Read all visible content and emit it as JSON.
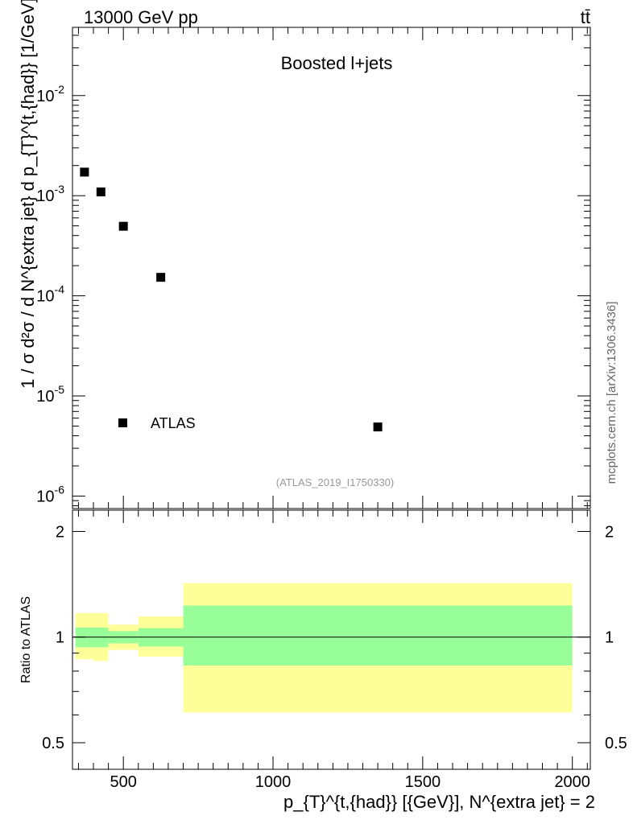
{
  "header": {
    "energy_label": "13000 GeV pp",
    "process_label": "tt̄"
  },
  "chart_data": [
    {
      "type": "scatter",
      "title": "Boosted l+jets",
      "ylabel": "1 / σ d²σ / d N^{extra jet} d p_{T}^{t,{had}} [1/GeV]",
      "xlabel": "p_{T}^{t,{had}} [{GeV}], N^{extra jet} = 2",
      "xlim": [
        330,
        2060
      ],
      "ylim": [
        7.5e-07,
        0.048
      ],
      "yscale": "log",
      "ytick_labels": [
        "10^-2",
        "10^-3",
        "10^-4",
        "10^-5",
        "10^-6"
      ],
      "series": [
        {
          "name": "ATLAS",
          "points": [
            {
              "x": 370,
              "y": 0.00172
            },
            {
              "x": 425,
              "y": 0.00109
            },
            {
              "x": 500,
              "y": 0.000495
            },
            {
              "x": 625,
              "y": 0.000153
            },
            {
              "x": 1350,
              "y": 4.9e-06
            }
          ]
        }
      ],
      "legend_position": "bottom-left",
      "analysis_label": "(ATLAS_2019_I1750330)",
      "side_label": "mcplots.cern.ch [arXiv:1306.3436]"
    },
    {
      "type": "bar",
      "ylabel": "Ratio to ATLAS",
      "ylim": [
        0.42,
        2.3
      ],
      "ytick_labels": [
        "0.5",
        "1",
        "2"
      ],
      "xtick_labels": [
        "500",
        "1000",
        "1500",
        "2000"
      ],
      "reference_line": 1,
      "bins": [
        {
          "xlow": 340,
          "xhigh": 400,
          "green": [
            0.935,
            1.065
          ],
          "yellow": [
            0.865,
            1.17
          ]
        },
        {
          "xlow": 400,
          "xhigh": 450,
          "green": [
            0.935,
            1.065
          ],
          "yellow": [
            0.855,
            1.17
          ]
        },
        {
          "xlow": 450,
          "xhigh": 550,
          "green": [
            0.96,
            1.04
          ],
          "yellow": [
            0.92,
            1.085
          ]
        },
        {
          "xlow": 550,
          "xhigh": 700,
          "green": [
            0.94,
            1.06
          ],
          "yellow": [
            0.88,
            1.145
          ]
        },
        {
          "xlow": 700,
          "xhigh": 2000,
          "green": [
            0.83,
            1.23
          ],
          "yellow": [
            0.61,
            1.425
          ]
        }
      ]
    }
  ]
}
